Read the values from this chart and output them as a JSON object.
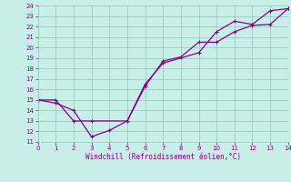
{
  "xlabel": "Windchill (Refroidissement éolien,°C)",
  "xlim": [
    0,
    14
  ],
  "ylim": [
    11,
    24
  ],
  "xticks": [
    0,
    1,
    2,
    3,
    4,
    5,
    6,
    7,
    8,
    9,
    10,
    11,
    12,
    13,
    14
  ],
  "yticks": [
    11,
    12,
    13,
    14,
    15,
    16,
    17,
    18,
    19,
    20,
    21,
    22,
    23,
    24
  ],
  "bg_color": "#c8eee8",
  "line_color": "#880088",
  "grid_color": "#99ccbb",
  "line1_x": [
    0,
    1,
    2,
    3,
    4,
    5,
    6,
    7,
    8,
    9,
    10,
    11,
    12,
    13,
    14
  ],
  "line1_y": [
    15,
    14.7,
    14,
    11.5,
    12.1,
    13,
    16.3,
    18.7,
    19.1,
    20.5,
    20.5,
    21.5,
    22.1,
    22.2,
    23.7
  ],
  "line2_x": [
    0,
    1,
    2,
    3,
    5,
    6,
    7,
    9,
    10,
    11,
    12,
    13,
    14
  ],
  "line2_y": [
    15,
    15.0,
    13.0,
    13.0,
    13.0,
    16.5,
    18.5,
    19.5,
    21.5,
    22.5,
    22.2,
    23.5,
    23.7
  ]
}
